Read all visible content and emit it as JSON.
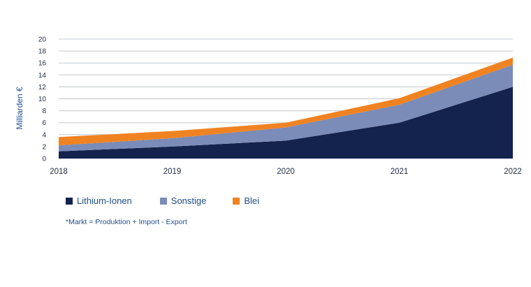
{
  "chart_data": {
    "type": "area",
    "stacked": true,
    "x": [
      "2018",
      "2019",
      "2020",
      "2021",
      "2022"
    ],
    "ylabel": "Milliarden €",
    "ylim": [
      0,
      20
    ],
    "yticks": [
      "0",
      "2",
      "4",
      "6",
      "8",
      "10",
      "12",
      "14",
      "16",
      "18",
      "20"
    ],
    "grid": true,
    "legend_position": "bottom-left",
    "series": [
      {
        "name": "Lithium-Ionen",
        "color": "#14234d",
        "values": [
          1.2,
          2.0,
          3.0,
          6.0,
          12.0
        ]
      },
      {
        "name": "Sonstige",
        "color": "#7b8cb8",
        "values": [
          1.0,
          1.4,
          2.2,
          3.0,
          3.7
        ]
      },
      {
        "name": "Blei",
        "color": "#f08321",
        "values": [
          1.4,
          1.2,
          0.8,
          1.1,
          1.2
        ]
      }
    ],
    "footnote": "*Markt = Produktion + Import - Export"
  }
}
